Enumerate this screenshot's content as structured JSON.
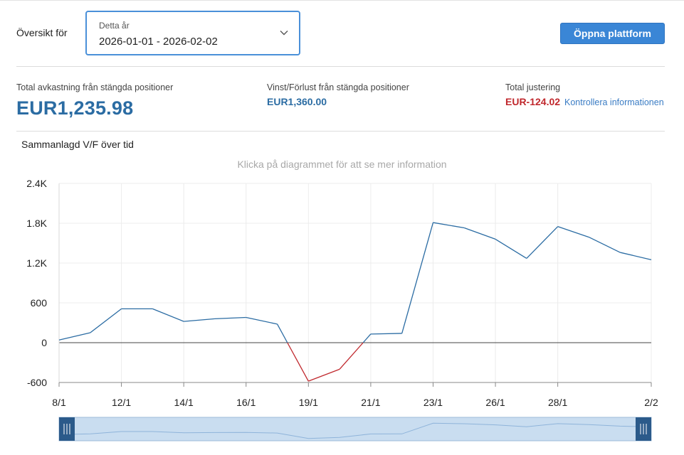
{
  "header": {
    "overview_label": "Översikt för",
    "period_select": {
      "label": "Detta år",
      "value": "2026-01-01 - 2026-02-02"
    },
    "open_platform_label": "Öppna plattform"
  },
  "stats": {
    "total_return": {
      "label": "Total avkastning från stängda positioner",
      "value": "EUR1,235.98"
    },
    "profit_loss": {
      "label": "Vinst/Förlust från stängda positioner",
      "value": "EUR1,360.00"
    },
    "total_adjustment": {
      "label": "Total justering",
      "value": "EUR-124.02",
      "link_text": "Kontrollera informationen"
    }
  },
  "chart_section": {
    "title": "Sammanlagd V/F över tid",
    "hint": "Klicka på diagrammet för att se mer information"
  },
  "colors": {
    "accent": "#3a86d6",
    "value_blue": "#2b6ca3",
    "negative_red": "#c0282d",
    "line_positive": "#2b6ca3",
    "line_negative": "#c0282d",
    "navigator_fill": "#c9ddf0",
    "navigator_handle": "#2b5a8a"
  },
  "chart_data": {
    "type": "line",
    "title": "Sammanlagd V/F över tid",
    "ylim": [
      -600,
      2400
    ],
    "y_ticks": [
      -600,
      0,
      600,
      1200,
      1800,
      2400
    ],
    "y_tick_labels": [
      "-600",
      "0",
      "600",
      "1.2K",
      "1.8K",
      "2.4K"
    ],
    "x_tick_labels": [
      "8/1",
      "12/1",
      "14/1",
      "16/1",
      "19/1",
      "21/1",
      "23/1",
      "26/1",
      "28/1",
      "2/2"
    ],
    "x_tick_index": [
      0,
      2,
      4,
      6,
      8,
      10,
      12,
      14,
      16,
      19
    ],
    "grid": true,
    "values": [
      40,
      150,
      510,
      510,
      320,
      360,
      380,
      280,
      -580,
      -400,
      130,
      140,
      1810,
      1730,
      1560,
      1270,
      1750,
      1590,
      1360,
      1250
    ],
    "navigator": {
      "range": [
        0,
        1
      ]
    }
  }
}
